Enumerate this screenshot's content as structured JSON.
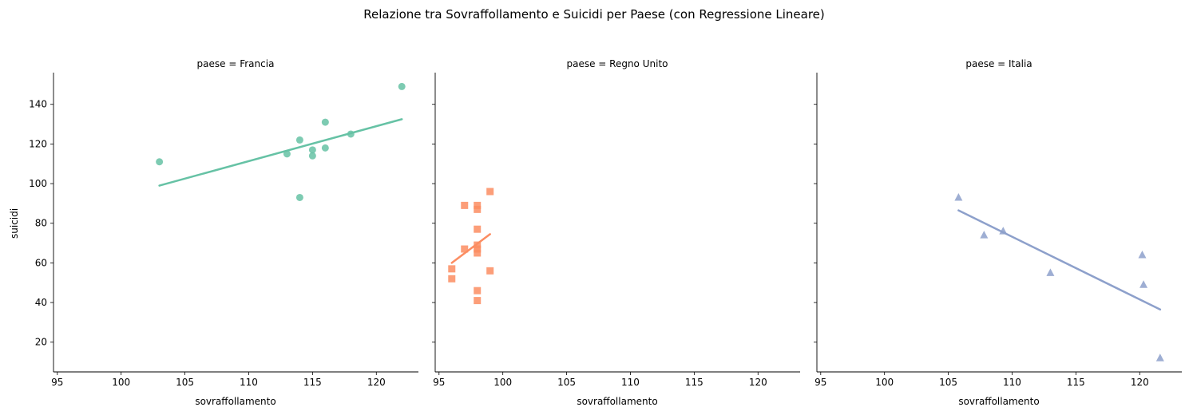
{
  "figure": {
    "title": "Relazione tra Sovraffollamento e Suicidi per Paese (con Regressione Lineare)"
  },
  "chart_data": [
    {
      "type": "scatter",
      "title": "paese = Francia",
      "xlabel": "sovraffollamento",
      "ylabel": "suicidi",
      "xlim": [
        94.7,
        123.3
      ],
      "ylim": [
        5,
        156
      ],
      "xticks": [
        95,
        100,
        105,
        110,
        115,
        120
      ],
      "yticks": [
        20,
        40,
        60,
        80,
        100,
        120,
        140
      ],
      "marker": "circle",
      "color": "#66c2a5",
      "points": [
        [
          103,
          111
        ],
        [
          113,
          115
        ],
        [
          114,
          122
        ],
        [
          114,
          93
        ],
        [
          115,
          117
        ],
        [
          115,
          114
        ],
        [
          116,
          131
        ],
        [
          116,
          118
        ],
        [
          118,
          125
        ],
        [
          122,
          149
        ]
      ],
      "regression": [
        [
          103,
          99
        ],
        [
          122,
          132.5
        ]
      ]
    },
    {
      "type": "scatter",
      "title": "paese = Regno Unito",
      "xlabel": "sovraffollamento",
      "ylabel": "",
      "xlim": [
        94.7,
        123.3
      ],
      "ylim": [
        5,
        156
      ],
      "xticks": [
        95,
        100,
        105,
        110,
        115,
        120
      ],
      "yticks": [
        20,
        40,
        60,
        80,
        100,
        120,
        140
      ],
      "marker": "square",
      "color": "#fc8d62",
      "points": [
        [
          96,
          57
        ],
        [
          96,
          52
        ],
        [
          97,
          89
        ],
        [
          97,
          67
        ],
        [
          98,
          89
        ],
        [
          98,
          87
        ],
        [
          98,
          77
        ],
        [
          98,
          69
        ],
        [
          98,
          67
        ],
        [
          98,
          65
        ],
        [
          98,
          46
        ],
        [
          98,
          41
        ],
        [
          99,
          96
        ],
        [
          99,
          56
        ]
      ],
      "regression": [
        [
          96,
          60
        ],
        [
          99,
          74.5
        ]
      ]
    },
    {
      "type": "scatter",
      "title": "paese = Italia",
      "xlabel": "sovraffollamento",
      "ylabel": "",
      "xlim": [
        94.7,
        123.3
      ],
      "ylim": [
        5,
        156
      ],
      "xticks": [
        95,
        100,
        105,
        110,
        115,
        120
      ],
      "yticks": [
        20,
        40,
        60,
        80,
        100,
        120,
        140
      ],
      "marker": "triangle",
      "color": "#8da0cb",
      "points": [
        [
          105.8,
          93
        ],
        [
          107.8,
          74
        ],
        [
          109.3,
          76
        ],
        [
          113,
          55
        ],
        [
          120.2,
          64
        ],
        [
          120.3,
          49
        ],
        [
          121.6,
          12
        ]
      ],
      "regression": [
        [
          105.8,
          86.5
        ],
        [
          121.6,
          36.5
        ]
      ]
    }
  ]
}
